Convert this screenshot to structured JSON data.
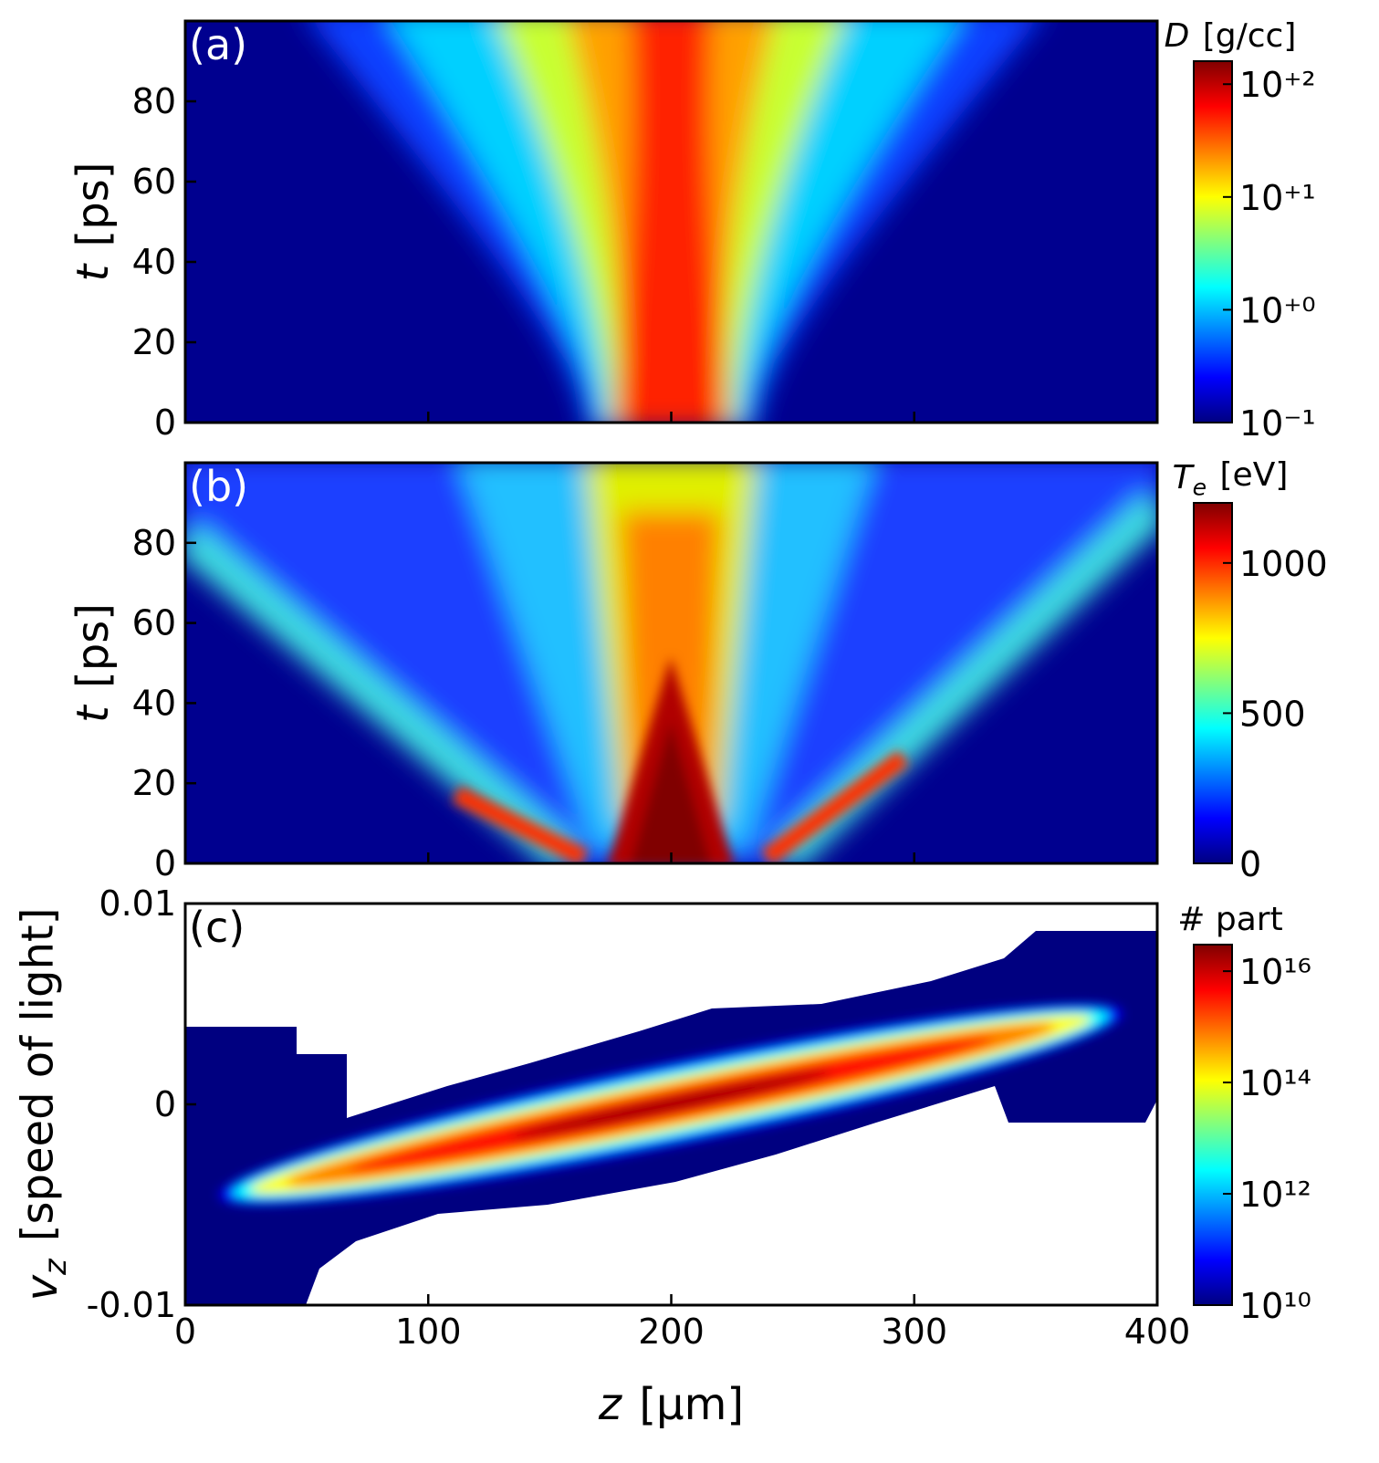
{
  "chart_data": [
    {
      "type": "heatmap",
      "panel_label": "(a)",
      "ylabel": {
        "symbol": "t",
        "unit": "[ps]"
      },
      "xlim": [
        0,
        400
      ],
      "xticks": [
        0,
        100,
        200,
        300,
        400
      ],
      "show_xticklabels": false,
      "ylim": [
        0,
        100
      ],
      "yticks": [
        0,
        20,
        40,
        60,
        80
      ],
      "colorbar": {
        "label": {
          "symbol": "D",
          "unit": "[g/cc]"
        },
        "scale": "log",
        "colormap": "jet",
        "lim": [
          0.1,
          160
        ],
        "ticks": [
          {
            "value": 0.1,
            "label": "10⁻¹"
          },
          {
            "value": 1,
            "label": "10⁺⁰"
          },
          {
            "value": 10,
            "label": "10⁺¹"
          },
          {
            "value": 100,
            "label": "10⁺²"
          }
        ]
      }
    },
    {
      "type": "heatmap",
      "panel_label": "(b)",
      "ylabel": {
        "symbol": "t",
        "unit": "[ps]"
      },
      "xlim": [
        0,
        400
      ],
      "xticks": [
        0,
        100,
        200,
        300,
        400
      ],
      "show_xticklabels": false,
      "ylim": [
        0,
        100
      ],
      "yticks": [
        0,
        20,
        40,
        60,
        80
      ],
      "colorbar": {
        "label": {
          "symbol": "T",
          "subscript": "e",
          "unit": "[eV]"
        },
        "scale": "linear",
        "colormap": "jet",
        "lim": [
          0,
          1200
        ],
        "ticks": [
          0,
          500,
          1000
        ]
      }
    },
    {
      "type": "heatmap",
      "panel_label": "(c)",
      "ylabel": {
        "symbol": "v",
        "subscript": "z",
        "unit": "[speed of light]"
      },
      "xlabel": {
        "symbol": "z",
        "unit": "[μm]"
      },
      "xlim": [
        0,
        400
      ],
      "xticks": [
        0,
        100,
        200,
        300,
        400
      ],
      "show_xticklabels": true,
      "ylim": [
        -0.01,
        0.01
      ],
      "yticks": [
        -0.01,
        0,
        0.01
      ],
      "colorbar": {
        "label": {
          "text": "# part"
        },
        "scale": "log",
        "colormap": "jet",
        "lim": [
          10000000000.0,
          3e+16
        ],
        "ticks": [
          {
            "value": 10000000000.0,
            "label": "10¹⁰"
          },
          {
            "value": 1000000000000.0,
            "label": "10¹²"
          },
          {
            "value": 100000000000000.0,
            "label": "10¹⁴"
          },
          {
            "value": 1e+16,
            "label": "10¹⁶"
          }
        ]
      }
    }
  ]
}
